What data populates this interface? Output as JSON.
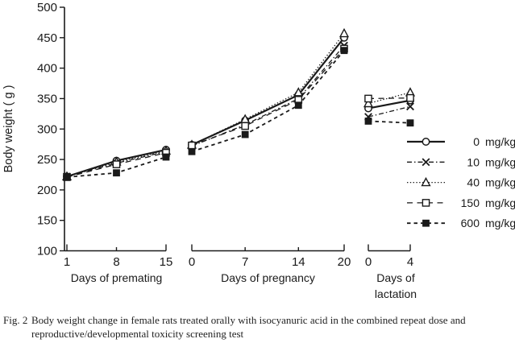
{
  "figure": {
    "caption_label": "Fig. 2",
    "caption_lines": [
      "Body weight change in female rats treated orally with isocyanuric acid in the combined repeat dose and",
      "reproductive/developmental toxicity screening test"
    ]
  },
  "chart_data": {
    "type": "line",
    "title": "Body weight change in female rats treated orally with isocyanuric acid in the combined repeat dose and reproductive/developmental toxicity screening test",
    "ylabel": "Body weight ( g )",
    "ylim": [
      100,
      500
    ],
    "ytick_step": 50,
    "yticks": [
      100,
      150,
      200,
      250,
      300,
      350,
      400,
      450,
      500
    ],
    "grid": false,
    "legend_position": "right",
    "ink_color": "#1a1a1a",
    "background_color": "#ffffff",
    "segments": [
      {
        "name": "premating",
        "xlabel": "Days of premating",
        "xticks": [
          1,
          8,
          15
        ],
        "xrange": [
          1,
          15
        ]
      },
      {
        "name": "pregnancy",
        "xlabel": "Days of pregnancy",
        "xticks": [
          0,
          7,
          14,
          20
        ],
        "xrange": [
          0,
          20
        ]
      },
      {
        "name": "lactation",
        "xlabel": "Days of lactation",
        "xlabel_lines": [
          "Days of",
          "lactation"
        ],
        "xticks": [
          0,
          4
        ],
        "xrange": [
          0,
          4
        ]
      }
    ],
    "series": [
      {
        "name": "0 mg/kg",
        "dose": "0",
        "unit": "mg/kg",
        "line": "solid",
        "marker": "circle-open",
        "values": {
          "premating": [
            222,
            248,
            266
          ],
          "pregnancy": [
            274,
            314,
            356,
            450
          ],
          "lactation": [
            334,
            347
          ]
        }
      },
      {
        "name": "10 mg/kg",
        "dose": "10",
        "unit": "mg/kg",
        "line": "dashdot",
        "marker": "x",
        "values": {
          "premating": [
            222,
            244,
            263
          ],
          "pregnancy": [
            272,
            307,
            350,
            437
          ],
          "lactation": [
            320,
            337
          ]
        }
      },
      {
        "name": "40 mg/kg",
        "dose": "40",
        "unit": "mg/kg",
        "line": "dotted",
        "marker": "triangle-open",
        "values": {
          "premating": [
            222,
            246,
            264
          ],
          "pregnancy": [
            274,
            316,
            360,
            457
          ],
          "lactation": [
            342,
            360
          ]
        }
      },
      {
        "name": "150 mg/kg",
        "dose": "150",
        "unit": "mg/kg",
        "line": "longdash",
        "marker": "square-open",
        "values": {
          "premating": [
            221,
            242,
            261
          ],
          "pregnancy": [
            273,
            305,
            348,
            432
          ],
          "lactation": [
            350,
            351
          ]
        }
      },
      {
        "name": "600 mg/kg",
        "dose": "600",
        "unit": "mg/kg",
        "line": "dash",
        "marker": "square-filled",
        "values": {
          "premating": [
            221,
            228,
            254
          ],
          "pregnancy": [
            263,
            291,
            339,
            429
          ],
          "lactation": [
            313,
            310
          ]
        }
      }
    ]
  }
}
